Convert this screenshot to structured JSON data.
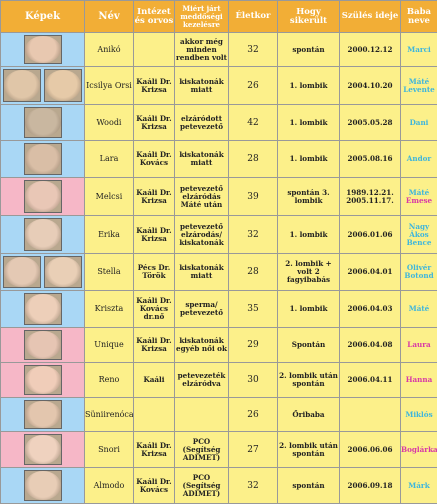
{
  "headers": [
    "Képek",
    "Név",
    "Intézet és orvos",
    "Miért járt meddőségi kezelésre",
    "Életkor",
    "Hogy sikerült",
    "Szülés ideje",
    "Baba neve"
  ],
  "colors": {
    "header_bg": "#f2ae36",
    "cell_bg": "#fcf08a",
    "boy_bg": "#a9d7f5",
    "girl_bg": "#f6b7c7",
    "boy_name": "#3fb6dc",
    "girl_name": "#d83aa6"
  },
  "rows": [
    {
      "pic": "blue",
      "photos": [
        "#e8c8b0"
      ],
      "name": "Anikó",
      "doctor": "",
      "reason": "akkor még minden rendben volt",
      "age": "32",
      "result": "spontán",
      "birth": "2000.12.12",
      "baby": "Marci",
      "baby_color": "boy"
    },
    {
      "pic": "blue",
      "photos": [
        "#e0c6a8",
        "#e6caa8"
      ],
      "name": "Icsilya Orsi",
      "doctor": "Kaáli Dr. Krizsa",
      "reason": "kiskatonák miatt",
      "age": "26",
      "result": "1. lombik",
      "birth": "2004.10.20",
      "baby": "Máté Levente",
      "baby_color": "boy"
    },
    {
      "pic": "blue",
      "photos": [
        "#c9b7a0"
      ],
      "name": "Woodi",
      "doctor": "Kaáli Dr. Krizsa",
      "reason": "elzáródott petevezető",
      "age": "42",
      "result": "1. lombik",
      "birth": "2005.05.28",
      "baby": "Dani",
      "baby_color": "boy"
    },
    {
      "pic": "blue",
      "photos": [
        "#d9bea6"
      ],
      "name": "Lara",
      "doctor": "Kaáli Dr. Kovács",
      "reason": "kiskatonák miatt",
      "age": "28",
      "result": "1. lombik",
      "birth": "2005.08.16",
      "baby": "Andor",
      "baby_color": "boy"
    },
    {
      "pic": "pink",
      "photos": [
        "#e9c7b6"
      ],
      "name": "Melcsi",
      "doctor": "Kaáli Dr. Krizsa",
      "reason": "petevezető elzáródás Máté után",
      "age": "39",
      "result": "spontán 3. lombik",
      "birth": "1989.12.21. 2005.11.17.",
      "baby": "Máté Emese",
      "baby_color": "mixed"
    },
    {
      "pic": "blue",
      "photos": [
        "#e7cdb8"
      ],
      "name": "Erika",
      "doctor": "Kaáli Dr. Krizsa",
      "reason": "petevezető elzárodás/ kiskatonák",
      "age": "32",
      "result": "1. lombik",
      "birth": "2006.01.06",
      "baby": "Nagy Ákos Bence",
      "baby_color": "boy"
    },
    {
      "pic": "blue",
      "photos": [
        "#e4c9b4",
        "#e9cfb6"
      ],
      "name": "Stella",
      "doctor": "Pécs Dr. Török",
      "reason": "kiskatonák miatt",
      "age": "28",
      "result": "2. lombik + volt 2 fagyibabás",
      "birth": "2006.04.01",
      "baby": "Olivér Botond",
      "baby_color": "boy"
    },
    {
      "pic": "blue",
      "photos": [
        "#edcfb9"
      ],
      "name": "Kriszta",
      "doctor": "Kaáli Dr. Kovács dr.nő",
      "reason": "sperma/ petevezető",
      "age": "35",
      "result": "1. lombik",
      "birth": "2006.04.03",
      "baby": "Máté",
      "baby_color": "boy"
    },
    {
      "pic": "pink",
      "photos": [
        "#e6c5b3"
      ],
      "name": "Unique",
      "doctor": "Kaáli Dr. Krizsa",
      "reason": "kiskatonák egyéb női ok",
      "age": "29",
      "result": "Spontán",
      "birth": "2006.04.08",
      "baby": "Laura",
      "baby_color": "girl"
    },
    {
      "pic": "pink",
      "photos": [
        "#f0cdb9"
      ],
      "name": "Reno",
      "doctor": "Kaáli",
      "reason": "petevezeték elzáródva",
      "age": "30",
      "result": "2. lombik után spontán",
      "birth": "2006.04.11",
      "baby": "Hanna",
      "baby_color": "girl"
    },
    {
      "pic": "blue",
      "photos": [
        "#e3c6ae"
      ],
      "name": "Süniirenóca",
      "doctor": "",
      "reason": "",
      "age": "26",
      "result": "Őribaba",
      "birth": "",
      "baby": "Miklós",
      "baby_color": "boy"
    },
    {
      "pic": "pink",
      "photos": [
        "#efd2bf"
      ],
      "name": "Snori",
      "doctor": "Kaáli Dr. Krizsa",
      "reason": "PCO (Segítség ADIMET)",
      "age": "27",
      "result": "2. lombik után spontán",
      "birth": "2006.06.06",
      "baby": "Boglárka",
      "baby_color": "girl"
    },
    {
      "pic": "blue",
      "photos": [
        "#e8cdb6"
      ],
      "name": "Almodo",
      "doctor": "Kaáli Dr. Kovács",
      "reason": "PCO (Segítség ADIMET)",
      "age": "32",
      "result": "spontán",
      "birth": "2006.09.18",
      "baby": "Márk",
      "baby_color": "boy"
    }
  ]
}
